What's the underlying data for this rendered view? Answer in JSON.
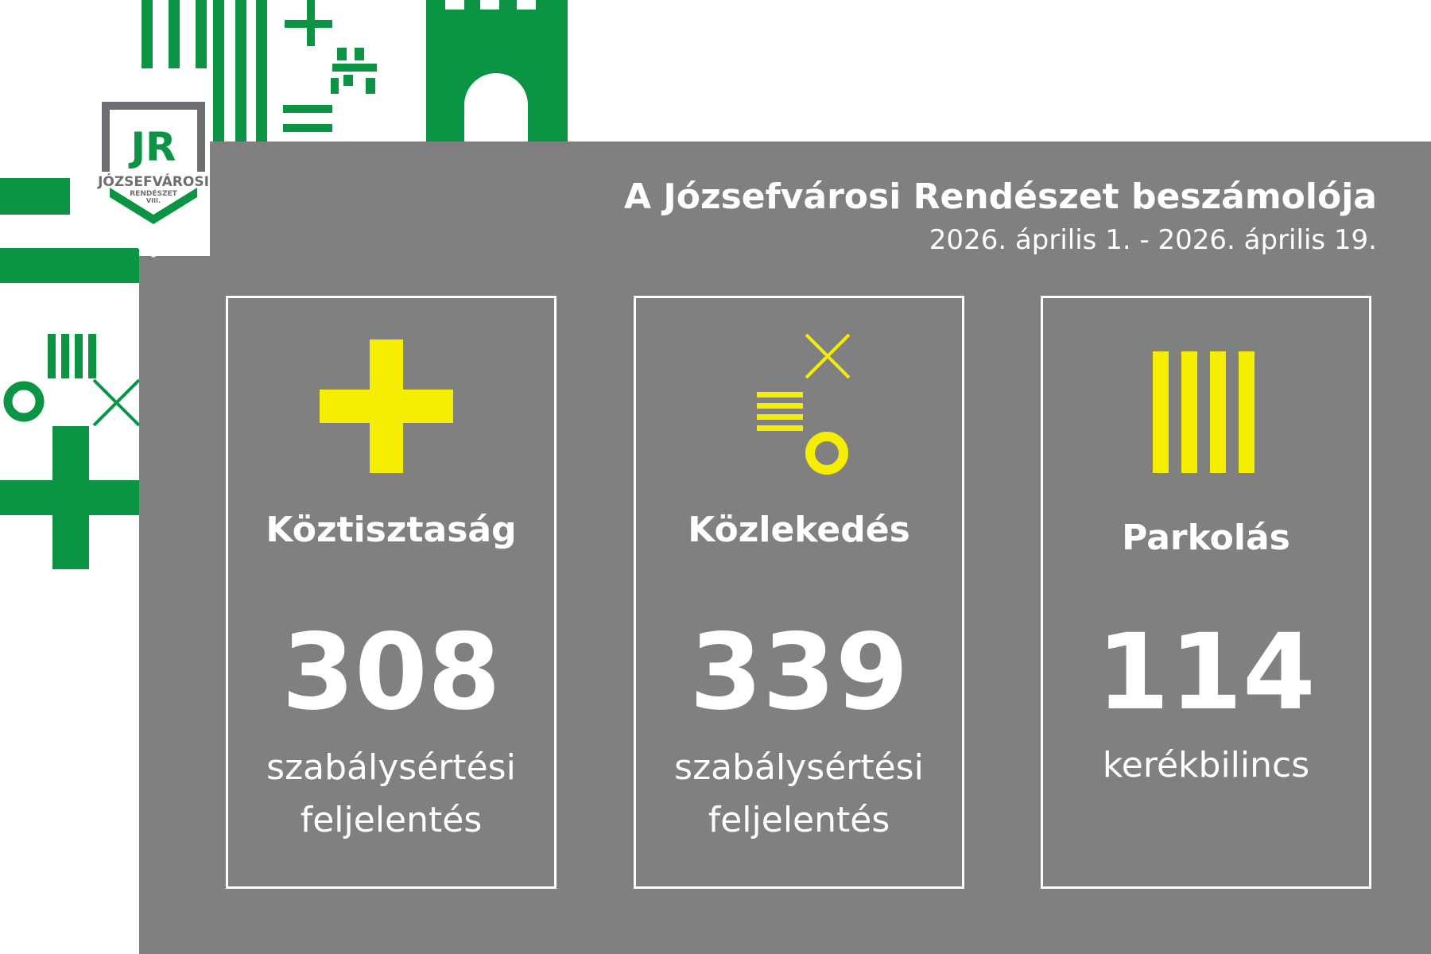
{
  "logo": {
    "monogram": "JR",
    "name": "JÓZSEFVÁROSI",
    "sub": "RENDÉSZET",
    "district": "VIII."
  },
  "header": {
    "title": "A Józsefvárosi Rendészet beszámolója",
    "date_range": "2026. április 1. - 2026. április 19."
  },
  "cards": [
    {
      "icon": "plus-icon",
      "title": "Köztisztaság",
      "value": "308",
      "desc_line1": "szabálysértési",
      "desc_line2": "feljelentés"
    },
    {
      "icon": "traffic-symbols-icon",
      "title": "Közlekedés",
      "value": "339",
      "desc_line1": "szabálysértési",
      "desc_line2": "feljelentés"
    },
    {
      "icon": "vertical-bars-icon",
      "title": "Parkolás",
      "value": "114",
      "desc_line1": "kerékbilincs",
      "desc_line2": ""
    }
  ],
  "colors": {
    "brand_green": "#0b9444",
    "panel_gray": "#808080",
    "accent_yellow": "#f6ee00",
    "text": "#ffffff",
    "logo_gray": "#6d6e71"
  }
}
